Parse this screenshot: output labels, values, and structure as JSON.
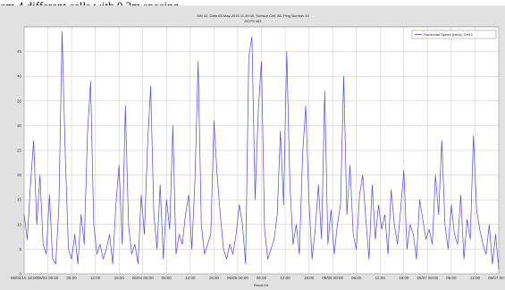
{
  "document": {
    "caption_fragment": "om 4 different cells with 0,2m spacing"
  },
  "chart_data": {
    "type": "line",
    "title": "SIN 42, Date 05-May-2015 11:30:00, Surface Cell, 88, Ping Number 10",
    "subtitle": "DCPS 463",
    "xlabel": "Record #",
    "ylabel": "",
    "grid": true,
    "legend_position": "top-right",
    "ylim": [
      0,
      50
    ],
    "yticks": [
      0,
      5,
      10,
      15,
      20,
      25,
      30,
      35,
      40,
      45
    ],
    "xlim": [
      0,
      60
    ],
    "x_tick_positions": [
      0,
      3,
      6,
      9,
      12,
      15,
      18,
      21,
      24,
      27,
      30,
      33,
      36,
      39,
      42,
      45,
      48,
      51,
      54,
      57,
      60
    ],
    "x_tick_labels": [
      "06/02/15 18:00",
      "06/03 00:00",
      "06:00",
      "12:00",
      "18:00",
      "06/04 00:00",
      "06:00",
      "12:00",
      "18:00",
      "06/05 00:00",
      "06:00",
      "12:00",
      "18:00",
      "06/06 00:00",
      "06:00",
      "12:00",
      "18:00",
      "06/07 00:00",
      "06:00",
      "12:00",
      "06/07 00:00"
    ],
    "series": [
      {
        "name": "Horizontal Speed [cm/s], Cell 1",
        "color": "#4a4adc",
        "x": [
          0.0,
          0.4,
          0.8,
          1.2,
          1.6,
          2.0,
          2.4,
          2.8,
          3.2,
          3.6,
          4.0,
          4.4,
          4.8,
          5.2,
          5.6,
          6.0,
          6.4,
          6.8,
          7.2,
          7.6,
          8.0,
          8.4,
          8.8,
          9.2,
          9.6,
          10.0,
          10.4,
          10.8,
          11.2,
          11.6,
          12.0,
          12.4,
          12.8,
          13.2,
          13.6,
          14.0,
          14.4,
          14.8,
          15.2,
          15.6,
          16.0,
          16.4,
          16.8,
          17.2,
          17.6,
          18.0,
          18.4,
          18.8,
          19.2,
          19.6,
          20.0,
          20.4,
          20.8,
          21.2,
          21.6,
          22.0,
          22.4,
          22.8,
          23.2,
          23.6,
          24.0,
          24.4,
          24.8,
          25.2,
          25.6,
          26.0,
          26.4,
          26.8,
          27.2,
          27.6,
          28.0,
          28.4,
          28.8,
          29.2,
          29.6,
          30.0,
          30.4,
          30.8,
          31.2,
          31.6,
          32.0,
          32.4,
          32.8,
          33.2,
          33.6,
          34.0,
          34.4,
          34.8,
          35.2,
          35.6,
          36.0,
          36.4,
          36.8,
          37.2,
          37.6,
          38.0,
          38.4,
          38.8,
          39.2,
          39.6,
          40.0,
          40.4,
          40.8,
          41.2,
          41.6,
          42.0,
          42.4,
          42.8,
          43.2,
          43.6,
          44.0,
          44.4,
          44.8,
          45.2,
          45.6,
          46.0,
          46.4,
          46.8,
          47.2,
          47.6,
          48.0,
          48.4,
          48.8,
          49.2,
          49.6,
          50.0,
          50.4,
          50.8,
          51.2,
          51.6,
          52.0,
          52.4,
          52.8,
          53.2,
          53.6,
          54.0,
          54.4,
          54.8,
          55.2,
          55.6,
          56.0,
          56.4,
          56.8,
          57.2,
          57.6,
          58.0,
          58.4,
          58.8,
          59.2,
          59.6,
          60.0
        ],
        "y": [
          12,
          7,
          18,
          27,
          10,
          20,
          6,
          4,
          16,
          3,
          2,
          14,
          49,
          24,
          5,
          3,
          8,
          2,
          12,
          6,
          28,
          39,
          10,
          4,
          6,
          3,
          5,
          8,
          2,
          14,
          22,
          6,
          34,
          10,
          4,
          6,
          2,
          16,
          8,
          26,
          38,
          12,
          5,
          18,
          3,
          15,
          9,
          30,
          4,
          8,
          6,
          12,
          16,
          5,
          19,
          43,
          10,
          4,
          6,
          8,
          31,
          20,
          12,
          5,
          3,
          6,
          4,
          8,
          14,
          10,
          2,
          44,
          48,
          15,
          33,
          43,
          9,
          3,
          5,
          7,
          12,
          29,
          14,
          45,
          18,
          6,
          10,
          4,
          24,
          34,
          15,
          3,
          9,
          18,
          7,
          37,
          6,
          13,
          4,
          10,
          14,
          40,
          12,
          22,
          8,
          5,
          16,
          20,
          11,
          3,
          18,
          7,
          14,
          9,
          12,
          4,
          17,
          10,
          6,
          13,
          21,
          5,
          10,
          8,
          3,
          15,
          11,
          7,
          9,
          6,
          20,
          12,
          27,
          10,
          5,
          14,
          8,
          6,
          16,
          3,
          11,
          7,
          28,
          13,
          9,
          6,
          4,
          10,
          2,
          8,
          1
        ]
      }
    ]
  }
}
